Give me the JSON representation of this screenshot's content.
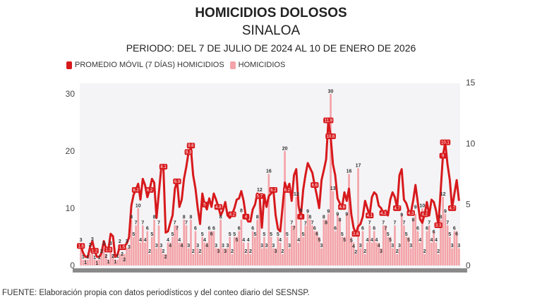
{
  "header": {
    "title": "HOMICIDIOS DOLOSOS",
    "subtitle": "SINALOA",
    "period": "PERIODO: DEL 7 DE JULIO DE 2024 AL 10 DE ENERO DE 2026"
  },
  "legend": [
    {
      "label": "PROMEDIO MÓVIL (7 DÍAS) HOMICIDIOS",
      "color": "#d7191c"
    },
    {
      "label": "HOMICIDIOS",
      "color": "#f4a3a8"
    }
  ],
  "source": "FUENTE: Elaboración propia con datos periodísticos y del conteo diario del SESNSP.",
  "chart_data": {
    "type": "bar+line",
    "title": "HOMICIDIOS DOLOSOS",
    "left_axis": {
      "ticks": [
        0,
        10,
        20,
        30
      ],
      "range": [
        0,
        30
      ]
    },
    "right_axis": {
      "ticks": [
        0,
        5,
        10,
        15
      ],
      "range": [
        0,
        15
      ]
    },
    "grid": false,
    "legend_placement": "top-left",
    "series": [
      {
        "name": "HOMICIDIOS",
        "type": "bar",
        "axis": "left",
        "color": "#f4a3a8",
        "values": [
          3,
          1,
          1,
          1,
          2,
          3,
          1,
          1,
          1,
          2,
          3,
          2,
          1,
          3,
          2,
          1,
          1,
          2,
          2,
          2,
          3,
          3,
          8,
          5,
          7,
          10,
          4,
          7,
          4,
          6,
          2,
          5,
          8,
          3,
          7,
          3,
          2,
          2,
          4,
          4,
          5,
          7,
          7,
          4,
          4,
          8,
          7,
          3,
          8,
          2,
          6,
          3,
          2,
          5,
          4,
          4,
          6,
          6,
          6,
          3,
          3,
          8,
          3,
          3,
          3,
          5,
          2,
          5,
          5,
          6,
          8,
          4,
          2,
          4,
          2,
          6,
          5,
          8,
          12,
          3,
          5,
          3,
          16,
          5,
          3,
          3,
          5,
          4,
          2,
          20,
          5,
          3,
          7,
          7,
          12,
          4,
          9,
          5,
          7,
          9,
          8,
          7,
          6,
          6,
          5,
          3,
          8,
          8,
          9,
          30,
          13,
          6,
          9,
          8,
          5,
          5,
          9,
          16,
          5,
          4,
          2,
          17,
          3,
          6,
          2,
          4,
          7,
          4,
          6,
          4,
          4,
          3,
          7,
          7,
          5,
          5,
          3,
          7,
          2,
          3,
          9,
          7,
          5,
          5,
          3,
          8,
          9,
          6,
          4,
          10,
          2,
          6,
          7,
          4,
          6,
          4,
          2,
          8,
          12,
          9,
          7,
          5,
          3,
          6,
          6,
          3
        ]
      },
      {
        "name": "PROMEDIO MÓVIL (7 DÍAS) HOMICIDIOS",
        "type": "line",
        "axis": "right",
        "color": "#d7191c",
        "values": [
          1.6,
          1.0,
          0.7,
          0.7,
          1.5,
          2.0,
          1.2,
          0.7,
          0.7,
          1.0,
          2.0,
          1.4,
          1.3,
          2.6,
          2.4,
          0.7,
          0.9,
          1.6,
          1.5,
          1.6,
          1.8,
          2.3,
          4.9,
          5.8,
          6.2,
          6.7,
          5.4,
          7.1,
          6.6,
          5.6,
          6.2,
          7.1,
          6.8,
          3.9,
          5.9,
          7.9,
          8.1,
          2.7,
          2.8,
          3.5,
          4.1,
          6.3,
          6.9,
          4.8,
          5.4,
          7.1,
          8.1,
          9.3,
          9.6,
          7.4,
          6.3,
          4.7,
          3.4,
          5.9,
          5.0,
          4.6,
          5.5,
          4.8,
          5.9,
          5.4,
          4.8,
          4.1,
          4.5,
          5.2,
          4.1,
          3.9,
          4.2,
          4.7,
          5.4,
          5.5,
          6.1,
          5.3,
          4.0,
          3.6,
          3.6,
          4.6,
          5.0,
          5.9,
          5.7,
          3.1,
          5.8,
          4.8,
          5.7,
          5.9,
          6.2,
          4.1,
          3.0,
          2.8,
          4.8,
          6.8,
          6.2,
          6.7,
          5.3,
          7.4,
          7.9,
          4.9,
          4.0,
          6.2,
          7.4,
          8.4,
          8.0,
          7.6,
          6.6,
          5.7,
          4.7,
          7.0,
          7.8,
          8.7,
          11.9,
          10.6,
          8.3,
          7.4,
          5.5,
          5.1,
          4.8,
          6.0,
          5.3,
          6.3,
          4.2,
          3.1,
          2.6,
          3.2,
          3.4,
          4.0,
          5.3,
          4.7,
          4.1,
          5.6,
          6.0,
          5.8,
          4.9,
          4.7,
          4.3,
          4.5,
          4.1,
          5.4,
          6.0,
          5.6,
          4.7,
          7.4,
          7.9,
          5.4,
          5.1,
          4.5,
          4.3,
          5.3,
          6.6,
          5.2,
          3.8,
          3.5,
          4.2,
          5.2,
          4.1,
          5.4,
          5.2,
          4.5,
          3.3,
          6.1,
          9.0,
          10.1,
          8.3,
          7.0,
          4.7,
          5.9,
          7.0,
          5.3
        ]
      }
    ]
  }
}
